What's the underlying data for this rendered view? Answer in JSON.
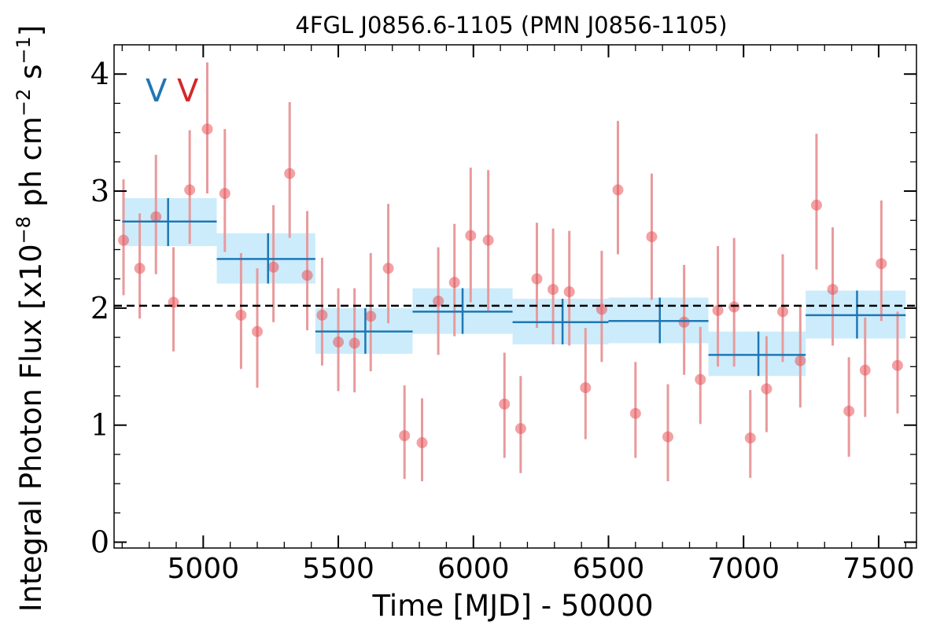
{
  "chart_data": {
    "type": "scatter",
    "title": "4FGL J0856.6-1105 (PMN J0856-1105)",
    "xlabel": "Time [MJD] - 50000",
    "ylabel": "Integral Photon Flux [x10$^{-8}$ ph cm$^{-2}$ s$^{-1}$]",
    "ylabel_parts": [
      "Integral Photon Flux [x10",
      "−8",
      " ph cm",
      "−2",
      " s",
      "−1",
      "]"
    ],
    "xlim": [
      4670,
      7640
    ],
    "ylim": [
      -0.05,
      4.25
    ],
    "x_ticks": [
      5000,
      5500,
      6000,
      6500,
      7000,
      7500
    ],
    "x_tick_labels": [
      "5000",
      "5500",
      "6000",
      "6500",
      "7000",
      "7500"
    ],
    "y_ticks": [
      0,
      1,
      2,
      3,
      4
    ],
    "y_tick_labels": [
      "0",
      "1",
      "2",
      "3",
      "4"
    ],
    "grid": false,
    "legend_markers": [
      {
        "text": "V",
        "color": "#1f77b4"
      },
      {
        "text": "V",
        "color": "#d62728"
      }
    ],
    "mean_flux": 2.02,
    "series": [
      {
        "kind": "points",
        "color": "#e8535a",
        "errorbar_color": "#e89a9c",
        "x": [
          4705,
          4765,
          4825,
          4890,
          4950,
          5015,
          5080,
          5140,
          5200,
          5260,
          5320,
          5385,
          5440,
          5500,
          5560,
          5620,
          5685,
          5745,
          5810,
          5870,
          5930,
          5990,
          6055,
          6115,
          6175,
          6235,
          6295,
          6355,
          6415,
          6475,
          6535,
          6600,
          6660,
          6720,
          6780,
          6840,
          6905,
          6965,
          7025,
          7085,
          7145,
          7210,
          7270,
          7330,
          7390,
          7450,
          7510,
          7570
        ],
        "y": [
          2.58,
          2.34,
          2.78,
          2.05,
          3.01,
          3.53,
          2.98,
          1.94,
          1.8,
          2.35,
          3.15,
          2.28,
          1.94,
          1.71,
          1.7,
          1.93,
          2.34,
          0.91,
          0.85,
          2.06,
          2.22,
          2.62,
          2.58,
          1.18,
          0.97,
          2.25,
          2.16,
          2.14,
          1.32,
          1.99,
          3.01,
          1.1,
          2.61,
          0.9,
          1.88,
          1.39,
          1.98,
          2.01,
          0.89,
          1.31,
          1.97,
          1.55,
          2.88,
          2.16,
          1.12,
          1.47,
          2.38,
          1.51
        ],
        "yerr_low": [
          0.47,
          0.43,
          0.49,
          0.42,
          0.46,
          0.55,
          0.5,
          0.46,
          0.48,
          0.47,
          0.55,
          0.47,
          0.43,
          0.42,
          0.42,
          0.47,
          0.47,
          0.37,
          0.33,
          0.46,
          0.46,
          0.57,
          0.6,
          0.46,
          0.38,
          0.42,
          0.47,
          0.46,
          0.44,
          0.45,
          0.55,
          0.38,
          0.54,
          0.38,
          0.45,
          0.38,
          0.48,
          0.51,
          0.34,
          0.37,
          0.43,
          0.4,
          0.55,
          0.48,
          0.39,
          0.4,
          0.49,
          0.41
        ],
        "yerr_high": [
          0.52,
          0.47,
          0.53,
          0.47,
          0.51,
          0.57,
          0.55,
          0.53,
          0.54,
          0.53,
          0.61,
          0.55,
          0.49,
          0.46,
          0.47,
          0.54,
          0.55,
          0.43,
          0.38,
          0.46,
          0.5,
          0.58,
          0.6,
          0.44,
          0.45,
          0.48,
          0.52,
          0.52,
          0.51,
          0.5,
          0.59,
          0.44,
          0.54,
          0.45,
          0.49,
          0.45,
          0.55,
          0.59,
          0.41,
          0.45,
          0.49,
          0.47,
          0.61,
          0.53,
          0.46,
          0.45,
          0.54,
          0.46
        ]
      },
      {
        "kind": "bins",
        "color": "#1f77b4",
        "band_color": "#ccecfb",
        "x_start": [
          4700,
          5050,
          5415,
          5775,
          6145,
          6500,
          6870,
          7230
        ],
        "x_end": [
          5050,
          5415,
          5775,
          6145,
          6500,
          6870,
          7230,
          7600
        ],
        "x_center": [
          4870,
          5240,
          5600,
          5960,
          6330,
          6690,
          7055,
          7420
        ],
        "y": [
          2.74,
          2.42,
          1.8,
          1.97,
          1.88,
          1.89,
          1.6,
          1.94
        ],
        "y_low": [
          2.53,
          2.21,
          1.61,
          1.78,
          1.69,
          1.7,
          1.42,
          1.74
        ],
        "y_high": [
          2.94,
          2.64,
          2.0,
          2.17,
          2.08,
          2.09,
          1.8,
          2.15
        ]
      }
    ]
  }
}
